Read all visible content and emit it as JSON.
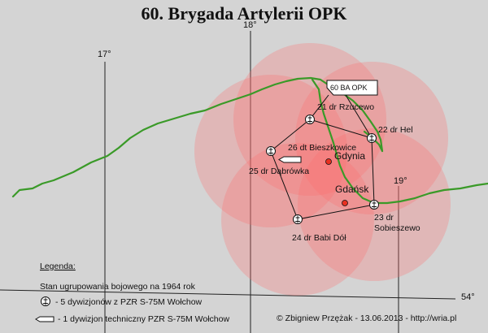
{
  "map": {
    "title": "60. Brygada Artylerii OPK",
    "colors": {
      "background": "#d4d4d4",
      "coast": "#3a9a28",
      "zone": "#ff6a6a",
      "city": "#e83020",
      "lines": "#111111"
    },
    "grid_labels": {
      "lon_17": "17°",
      "lon_18": "18°",
      "lon_19": "19°",
      "lat_54": "54°"
    },
    "hq_label": "60 BA OPK",
    "cities": {
      "gdynia": "Gdynia",
      "gdansk": "Gdańsk"
    },
    "sites": {
      "rzucewo": "21 dr Rzucewo",
      "hel": "22 dr Hel",
      "sobieszewo_1": "23 dr",
      "sobieszewo_2": "Sobieszewo",
      "babi_dol": "24 dr Babi Dół",
      "dabrowka": "25 dr Dąbrówka",
      "bieszkowice": "26 dt Bieszkowice"
    },
    "legend": {
      "title": "Legenda:",
      "status": "Stan ugrupowania bojowego na 1964 rok",
      "item_missile": "- 5 dywizjonów z PZR  S-75M Wołchow",
      "item_technical": "- 1 dywizjon techniczny PZR  S-75M Wołchow"
    },
    "credit": "© Zbigniew Przężak - 13.06.2013 - http://wria.pl"
  }
}
